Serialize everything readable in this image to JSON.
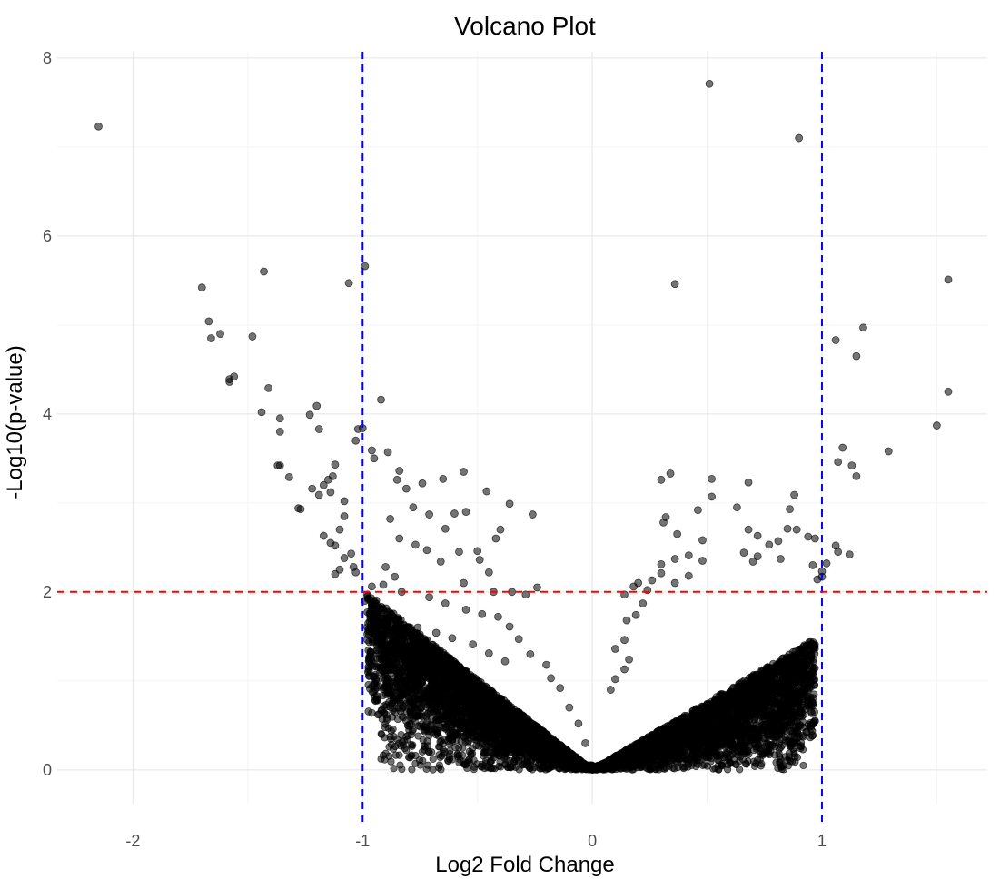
{
  "chart_data": {
    "type": "scatter",
    "title": "Volcano Plot",
    "xlabel": "Log2 Fold Change",
    "ylabel": "-Log10(p-value)",
    "xlim": [
      -2.33,
      1.72
    ],
    "ylim": [
      -0.38,
      8.07
    ],
    "x_ticks": [
      -2,
      -1,
      0,
      1
    ],
    "x_tick_labels": [
      "-2",
      "-1",
      "0",
      "1"
    ],
    "y_ticks": [
      0,
      2,
      4,
      6,
      8
    ],
    "y_tick_labels": [
      "0",
      "2",
      "4",
      "6",
      "8"
    ],
    "grid": true,
    "legend": "none",
    "point_color": "#000000",
    "thresholds": {
      "vertical": [
        -1,
        1
      ],
      "vertical_color": "#0000ff",
      "horizontal": 2,
      "horizontal_color": "#ff0000"
    },
    "points": [
      [
        -2.15,
        7.23
      ],
      [
        0.51,
        7.71
      ],
      [
        0.9,
        7.1
      ],
      [
        -1.7,
        5.42
      ],
      [
        -1.43,
        5.6
      ],
      [
        -0.99,
        5.66
      ],
      [
        -1.06,
        5.47
      ],
      [
        0.36,
        5.46
      ],
      [
        1.55,
        5.51
      ],
      [
        -1.67,
        5.04
      ],
      [
        -1.66,
        4.85
      ],
      [
        -1.62,
        4.9
      ],
      [
        -1.48,
        4.87
      ],
      [
        1.18,
        4.97
      ],
      [
        1.06,
        4.83
      ],
      [
        1.15,
        4.65
      ],
      [
        -1.56,
        4.42
      ],
      [
        -1.58,
        4.36
      ],
      [
        -1.58,
        4.39
      ],
      [
        -1.41,
        4.29
      ],
      [
        -1.44,
        4.02
      ],
      [
        -1.36,
        3.95
      ],
      [
        -1.36,
        3.8
      ],
      [
        -1.2,
        4.09
      ],
      [
        -1.23,
        3.99
      ],
      [
        -1.19,
        3.83
      ],
      [
        -0.92,
        4.16
      ],
      [
        -1.02,
        3.83
      ],
      [
        -1.0,
        3.84
      ],
      [
        -1.03,
        3.7
      ],
      [
        1.55,
        4.25
      ],
      [
        1.5,
        3.87
      ],
      [
        -0.96,
        3.59
      ],
      [
        -0.89,
        3.57
      ],
      [
        -0.95,
        3.5
      ],
      [
        1.09,
        3.62
      ],
      [
        1.29,
        3.58
      ],
      [
        1.07,
        3.46
      ],
      [
        1.13,
        3.42
      ],
      [
        1.15,
        3.3
      ],
      [
        -1.37,
        3.42
      ],
      [
        -1.36,
        3.42
      ],
      [
        -1.32,
        3.29
      ],
      [
        -1.28,
        2.94
      ],
      [
        -1.27,
        2.93
      ],
      [
        -1.22,
        3.16
      ],
      [
        -1.17,
        3.2
      ],
      [
        -1.12,
        3.43
      ],
      [
        -1.13,
        3.3
      ],
      [
        -1.14,
        3.12
      ],
      [
        -1.19,
        3.09
      ],
      [
        -1.15,
        3.26
      ],
      [
        -1.08,
        3.02
      ],
      [
        -1.08,
        2.85
      ],
      [
        -1.1,
        2.7
      ],
      [
        -1.17,
        2.63
      ],
      [
        -1.14,
        2.55
      ],
      [
        -1.12,
        2.52
      ],
      [
        -1.05,
        2.43
      ],
      [
        -1.04,
        2.28
      ],
      [
        -1.03,
        2.22
      ],
      [
        -1.08,
        2.38
      ],
      [
        -1.1,
        2.25
      ],
      [
        -1.12,
        2.2
      ],
      [
        -0.84,
        3.36
      ],
      [
        -0.85,
        3.26
      ],
      [
        -0.81,
        3.16
      ],
      [
        -0.74,
        3.22
      ],
      [
        -0.65,
        3.27
      ],
      [
        -0.56,
        3.35
      ],
      [
        -0.46,
        3.13
      ],
      [
        -0.36,
        2.99
      ],
      [
        -0.26,
        2.87
      ],
      [
        -0.64,
        2.71
      ],
      [
        -0.55,
        2.9
      ],
      [
        -0.6,
        2.88
      ],
      [
        -0.78,
        2.95
      ],
      [
        -0.71,
        2.87
      ],
      [
        -0.88,
        2.82
      ],
      [
        -0.84,
        2.6
      ],
      [
        -0.77,
        2.53
      ],
      [
        -0.72,
        2.47
      ],
      [
        -0.66,
        2.34
      ],
      [
        -0.58,
        2.45
      ],
      [
        -0.49,
        2.36
      ],
      [
        -0.45,
        2.22
      ],
      [
        -0.4,
        2.7
      ],
      [
        -0.5,
        2.46
      ],
      [
        -0.42,
        2.6
      ],
      [
        -0.56,
        2.1
      ],
      [
        -0.43,
        2.0
      ],
      [
        -0.35,
        2.0
      ],
      [
        -0.29,
        1.97
      ],
      [
        -0.24,
        2.05
      ],
      [
        0.3,
        3.26
      ],
      [
        0.34,
        3.33
      ],
      [
        0.52,
        3.27
      ],
      [
        0.68,
        3.23
      ],
      [
        0.52,
        3.07
      ],
      [
        0.46,
        2.92
      ],
      [
        0.32,
        2.84
      ],
      [
        0.31,
        2.78
      ],
      [
        0.37,
        2.65
      ],
      [
        0.63,
        2.95
      ],
      [
        0.68,
        2.7
      ],
      [
        0.72,
        2.63
      ],
      [
        0.88,
        3.09
      ],
      [
        0.86,
        2.93
      ],
      [
        0.85,
        2.71
      ],
      [
        0.89,
        2.7
      ],
      [
        0.94,
        2.62
      ],
      [
        0.97,
        2.6
      ],
      [
        0.81,
        2.57
      ],
      [
        0.77,
        2.53
      ],
      [
        0.72,
        2.4
      ],
      [
        0.82,
        2.37
      ],
      [
        0.7,
        2.34
      ],
      [
        0.66,
        2.44
      ],
      [
        0.48,
        2.58
      ],
      [
        0.42,
        2.41
      ],
      [
        0.48,
        2.35
      ],
      [
        0.36,
        2.37
      ],
      [
        0.3,
        2.31
      ],
      [
        0.3,
        2.21
      ],
      [
        0.36,
        2.1
      ],
      [
        0.42,
        2.18
      ],
      [
        1.06,
        2.52
      ],
      [
        1.07,
        2.45
      ],
      [
        1.12,
        2.42
      ],
      [
        1.02,
        2.32
      ],
      [
        0.96,
        2.3
      ],
      [
        1.0,
        2.23
      ],
      [
        1.0,
        2.17
      ],
      [
        0.98,
        2.14
      ],
      [
        0.26,
        2.13
      ],
      [
        0.2,
        2.1
      ],
      [
        0.18,
        2.06
      ],
      [
        0.24,
        2.02
      ],
      [
        0.14,
        1.97
      ],
      [
        0.22,
        1.87
      ],
      [
        0.19,
        1.74
      ],
      [
        0.15,
        1.68
      ],
      [
        0.1,
        1.36
      ],
      [
        0.14,
        1.46
      ],
      [
        0.16,
        1.24
      ],
      [
        0.14,
        1.13
      ],
      [
        0.1,
        1.02
      ],
      [
        0.08,
        0.9
      ],
      [
        -0.9,
        2.28
      ],
      [
        -0.86,
        2.17
      ],
      [
        -0.91,
        2.08
      ],
      [
        -0.83,
        2.0
      ],
      [
        -0.71,
        1.94
      ],
      [
        -0.64,
        1.87
      ],
      [
        -0.55,
        1.8
      ],
      [
        -0.48,
        1.75
      ],
      [
        -0.41,
        1.72
      ],
      [
        -0.36,
        1.61
      ],
      [
        -0.32,
        1.47
      ],
      [
        -0.27,
        1.3
      ],
      [
        -0.2,
        1.18
      ],
      [
        -0.18,
        1.03
      ],
      [
        -0.14,
        0.92
      ],
      [
        -0.1,
        0.7
      ],
      [
        -0.06,
        0.52
      ],
      [
        -0.03,
        0.3
      ],
      [
        -0.98,
        1.97
      ],
      [
        -0.99,
        1.9
      ],
      [
        -0.96,
        2.06
      ],
      [
        -0.94,
        1.86
      ],
      [
        -0.92,
        1.77
      ],
      [
        -0.85,
        1.67
      ],
      [
        -0.76,
        1.6
      ],
      [
        -0.68,
        1.54
      ],
      [
        -0.61,
        1.48
      ],
      [
        -0.52,
        1.41
      ],
      [
        -0.45,
        1.31
      ],
      [
        -0.38,
        1.22
      ]
    ]
  }
}
